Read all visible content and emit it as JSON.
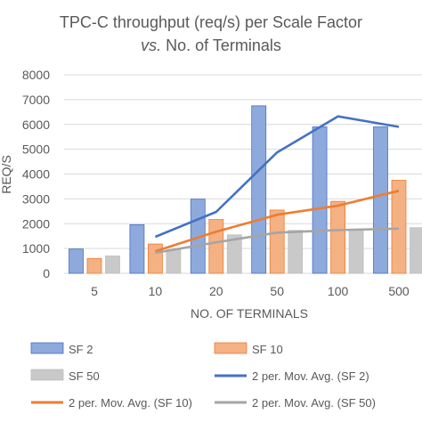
{
  "chart_data": {
    "type": "bar",
    "title_line1": "TPC-C throughput (req/s) per Scale Factor",
    "title_line2_italic": "vs.",
    "title_line2_rest": " No. of Terminals",
    "xlabel": "NO. OF TERMINALS",
    "ylabel": "REQ/S",
    "ylim": [
      0,
      8000
    ],
    "yticks": [
      "0",
      "1000",
      "2000",
      "3000",
      "4000",
      "5000",
      "6000",
      "7000",
      "8000"
    ],
    "categories": [
      "5",
      "10",
      "20",
      "50",
      "100",
      "500"
    ],
    "series": [
      {
        "name": "SF 2",
        "values": [
          980,
          1960,
          2990,
          6750,
          5900,
          5900
        ],
        "color": "#8ea9db"
      },
      {
        "name": "SF 10",
        "values": [
          600,
          1180,
          2170,
          2550,
          2900,
          3750
        ],
        "color": "#f4b183"
      },
      {
        "name": "SF 50",
        "values": [
          700,
          950,
          1550,
          1730,
          1760,
          1840
        ],
        "color": "#c9c9c9"
      }
    ],
    "moving_averages": [
      {
        "name": "2 per. Mov. Avg. (SF 2)",
        "values": [
          null,
          1470,
          2475,
          4870,
          6325,
          5900
        ],
        "color": "#4472c4"
      },
      {
        "name": "2 per. Mov. Avg. (SF 10)",
        "values": [
          null,
          890,
          1675,
          2360,
          2725,
          3325
        ],
        "color": "#ed7d31"
      },
      {
        "name": "2 per. Mov. Avg. (SF 50)",
        "values": [
          null,
          825,
          1250,
          1640,
          1745,
          1800
        ],
        "color": "#a5a5a5"
      }
    ],
    "grid": true,
    "legend_position": "bottom"
  }
}
